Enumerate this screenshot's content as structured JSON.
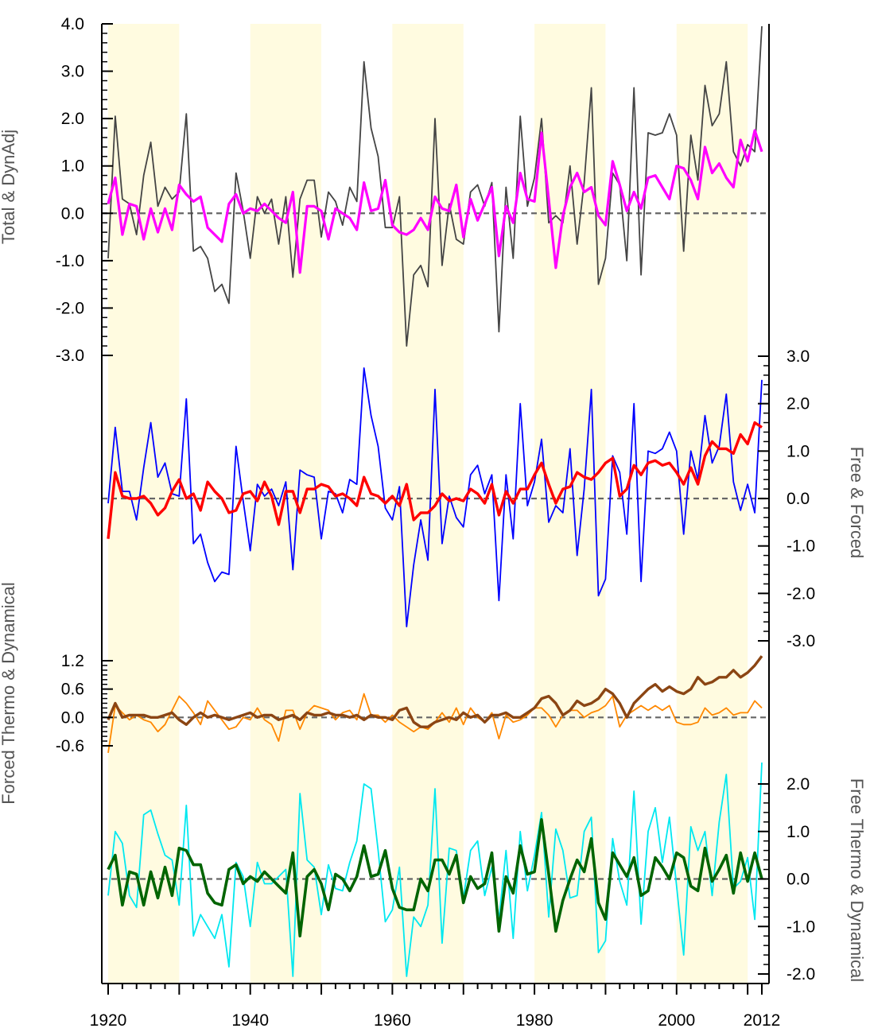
{
  "chart_data": {
    "type": "line",
    "x_axis": {
      "ticks": [
        1920,
        1940,
        1960,
        1980,
        2000,
        2012
      ],
      "range": [
        1919,
        2013
      ]
    },
    "shaded_decades": [
      [
        1920,
        1930
      ],
      [
        1940,
        1950
      ],
      [
        1960,
        1970
      ],
      [
        1980,
        1990
      ],
      [
        2000,
        2010
      ]
    ],
    "colors": {
      "shade": "#fffbe0",
      "zero_line": "#666666",
      "axis": "#000000",
      "label": "#555555"
    },
    "panels": [
      {
        "ylabel": "Total & DynAdj",
        "axis_side": "left",
        "ylim": [
          -3.0,
          4.0
        ],
        "ticks": [
          "4.0",
          "3.0",
          "2.0",
          "1.0",
          "0.0",
          "-1.0",
          "-2.0",
          "-3.0"
        ],
        "series": [
          {
            "color": "#444444",
            "width": 1.8,
            "start": 1920,
            "values": [
              -0.95,
              2.05,
              0.3,
              0.2,
              -0.45,
              0.8,
              1.5,
              0.15,
              0.55,
              0.3,
              0.45,
              2.1,
              -0.8,
              -0.7,
              -0.95,
              -1.65,
              -1.5,
              -1.9,
              0.85,
              0.05,
              -0.95,
              0.35,
              0.0,
              0.3,
              -0.65,
              0.35,
              -1.35,
              0.3,
              0.7,
              0.7,
              -0.5,
              0.45,
              0.25,
              -0.25,
              0.55,
              0.25,
              3.2,
              1.8,
              1.2,
              -0.3,
              -0.3,
              0.35,
              -2.8,
              -1.3,
              -1.1,
              -1.55,
              2.0,
              -1.1,
              0.2,
              -0.55,
              -0.65,
              0.45,
              0.6,
              0.15,
              0.65,
              -2.5,
              0.55,
              -0.95,
              2.05,
              0.15,
              0.75,
              2.0,
              -0.2,
              -0.05,
              -0.2,
              1.0,
              -0.65,
              0.65,
              2.65,
              -1.5,
              -0.95,
              0.85,
              0.6,
              -1.0,
              2.65,
              -1.3,
              1.7,
              1.65,
              1.7,
              2.1,
              1.65,
              -0.8,
              1.65,
              0.7,
              2.7,
              1.85,
              2.1,
              3.2,
              1.3,
              1.0,
              1.45,
              1.3,
              3.95
            ]
          },
          {
            "color": "#ff00ff",
            "width": 3.2,
            "start": 1920,
            "values": [
              0.2,
              0.75,
              -0.45,
              0.2,
              0.15,
              -0.55,
              0.1,
              -0.4,
              0.1,
              -0.35,
              0.6,
              0.4,
              0.25,
              0.35,
              -0.3,
              -0.45,
              -0.6,
              0.2,
              0.4,
              0.0,
              0.1,
              0.05,
              0.2,
              0.05,
              -0.1,
              -0.2,
              0.45,
              -1.25,
              0.15,
              0.15,
              0.05,
              -0.55,
              0.1,
              0.0,
              -0.1,
              -0.35,
              0.65,
              0.05,
              0.1,
              0.7,
              -0.25,
              -0.4,
              -0.45,
              -0.35,
              -0.1,
              -0.35,
              0.35,
              0.1,
              0.05,
              0.6,
              -0.5,
              0.3,
              -0.15,
              0.2,
              0.55,
              -0.9,
              0.15,
              -0.2,
              0.85,
              0.3,
              0.25,
              1.7,
              0.3,
              -1.15,
              -0.05,
              0.55,
              0.85,
              0.45,
              0.55,
              -0.05,
              -0.25,
              1.1,
              0.6,
              0.05,
              0.45,
              0.1,
              0.75,
              0.8,
              0.55,
              0.3,
              1.0,
              0.95,
              0.7,
              0.3,
              1.4,
              0.85,
              1.05,
              0.75,
              0.55,
              1.55,
              1.1,
              1.75,
              1.3
            ]
          }
        ]
      },
      {
        "ylabel": "Free & Forced",
        "axis_side": "right",
        "ylim": [
          -3.0,
          3.0
        ],
        "ticks": [
          "3.0",
          "2.0",
          "1.0",
          "0.0",
          "-1.0",
          "-2.0",
          "-3.0"
        ],
        "series": [
          {
            "color": "#0000ff",
            "width": 1.8,
            "start": 1920,
            "values": [
              -0.1,
              1.5,
              0.15,
              0.15,
              -0.45,
              0.65,
              1.6,
              0.45,
              0.75,
              0.1,
              0.05,
              2.1,
              -0.95,
              -0.75,
              -1.35,
              -1.75,
              -1.55,
              -1.6,
              1.1,
              -0.05,
              -1.1,
              0.3,
              0.05,
              0.2,
              -0.15,
              0.35,
              -1.5,
              0.6,
              0.5,
              0.45,
              -0.85,
              0.15,
              0.1,
              -0.3,
              0.4,
              0.3,
              2.75,
              1.75,
              1.1,
              -0.2,
              -0.45,
              0.25,
              -2.7,
              -1.4,
              -0.45,
              -1.3,
              2.3,
              -0.95,
              0.05,
              -0.4,
              -0.6,
              0.5,
              0.7,
              0.1,
              0.5,
              -2.15,
              0.5,
              -0.85,
              2.0,
              -0.15,
              0.35,
              1.25,
              -0.5,
              -0.15,
              -0.3,
              1.05,
              -1.2,
              0.2,
              2.3,
              -2.05,
              -1.7,
              0.9,
              0.55,
              -0.75,
              2.0,
              -1.75,
              1.0,
              0.95,
              1.05,
              1.4,
              1.0,
              -0.75,
              1.0,
              0.4,
              1.75,
              0.75,
              1.1,
              2.2,
              0.35,
              -0.25,
              0.3,
              -0.3,
              2.5
            ]
          },
          {
            "color": "#ff0000",
            "width": 3.4,
            "start": 1920,
            "values": [
              -0.85,
              0.55,
              0.05,
              0.0,
              0.0,
              0.05,
              -0.1,
              -0.35,
              -0.2,
              0.15,
              0.4,
              0.0,
              0.1,
              -0.25,
              0.35,
              0.15,
              0.0,
              -0.3,
              -0.25,
              0.1,
              0.15,
              -0.05,
              0.35,
              0.05,
              -0.55,
              0.15,
              0.15,
              -0.3,
              0.2,
              0.2,
              0.3,
              0.25,
              0.05,
              0.1,
              0.0,
              -0.15,
              0.45,
              0.1,
              0.05,
              -0.1,
              0.05,
              -0.15,
              0.3,
              -0.45,
              -0.3,
              -0.3,
              -0.15,
              0.1,
              -0.05,
              0.0,
              -0.05,
              0.2,
              0.1,
              -0.1,
              0.3,
              -0.35,
              0.15,
              -0.1,
              0.2,
              0.2,
              0.5,
              0.75,
              0.3,
              -0.1,
              0.2,
              0.25,
              0.55,
              0.45,
              0.4,
              0.55,
              0.75,
              0.85,
              0.05,
              0.2,
              0.7,
              0.5,
              0.75,
              0.8,
              0.7,
              0.75,
              0.55,
              0.3,
              0.65,
              0.3,
              0.9,
              1.2,
              1.05,
              1.05,
              0.95,
              1.35,
              1.15,
              1.6,
              1.5
            ]
          }
        ]
      },
      {
        "ylabel": "Forced Thermo & Dynamical",
        "axis_side": "left",
        "ylim": [
          -0.6,
          1.2
        ],
        "ticks": [
          "1.2",
          "0.6",
          "0.0",
          "-0.6"
        ],
        "series": [
          {
            "color": "#ff8800",
            "width": 1.8,
            "start": 1920,
            "values": [
              -0.75,
              0.25,
              0.1,
              -0.05,
              0.05,
              -0.05,
              -0.1,
              -0.3,
              -0.15,
              0.15,
              0.45,
              0.3,
              0.1,
              -0.15,
              0.35,
              0.15,
              -0.05,
              -0.25,
              -0.2,
              0.0,
              -0.05,
              0.2,
              -0.05,
              -0.15,
              -0.5,
              0.15,
              0.15,
              -0.25,
              0.1,
              0.25,
              0.2,
              0.15,
              -0.05,
              0.1,
              0.15,
              -0.05,
              0.5,
              0.05,
              0.05,
              -0.1,
              0.05,
              -0.1,
              -0.2,
              -0.3,
              -0.2,
              -0.25,
              -0.1,
              0.1,
              -0.1,
              0.2,
              -0.15,
              0.2,
              0.0,
              -0.1,
              0.1,
              -0.45,
              0.05,
              -0.1,
              -0.05,
              0.05,
              0.2,
              0.2,
              0.05,
              -0.2,
              0.05,
              0.15,
              0.15,
              0.0,
              0.1,
              0.15,
              0.25,
              0.45,
              -0.2,
              0.05,
              0.15,
              0.25,
              0.15,
              0.25,
              0.15,
              0.25,
              -0.1,
              -0.15,
              -0.15,
              -0.1,
              0.2,
              0.05,
              0.1,
              0.2,
              0.05,
              0.1,
              0.1,
              0.35,
              0.2
            ]
          },
          {
            "color": "#8b4513",
            "width": 3.4,
            "start": 1920,
            "values": [
              -0.05,
              0.3,
              0.0,
              0.05,
              0.05,
              0.05,
              0.0,
              0.0,
              0.05,
              0.1,
              -0.05,
              -0.15,
              0.0,
              0.1,
              0.0,
              0.05,
              0.0,
              -0.05,
              0.0,
              0.05,
              0.1,
              0.0,
              0.05,
              0.05,
              -0.05,
              0.0,
              0.05,
              -0.05,
              0.1,
              0.05,
              0.05,
              0.1,
              0.05,
              0.05,
              0.0,
              0.05,
              -0.05,
              0.05,
              0.0,
              0.0,
              -0.05,
              0.15,
              0.2,
              -0.1,
              -0.2,
              -0.2,
              -0.1,
              -0.05,
              0.0,
              -0.05,
              0.1,
              0.0,
              0.05,
              -0.1,
              0.05,
              0.05,
              0.1,
              0.0,
              0.0,
              0.1,
              0.2,
              0.4,
              0.45,
              0.3,
              0.05,
              0.15,
              0.35,
              0.25,
              0.3,
              0.4,
              0.6,
              0.5,
              0.3,
              0.0,
              0.3,
              0.45,
              0.6,
              0.7,
              0.55,
              0.65,
              0.55,
              0.5,
              0.6,
              0.85,
              0.7,
              0.75,
              0.85,
              0.85,
              1.0,
              0.85,
              0.95,
              1.1,
              1.3
            ]
          }
        ]
      },
      {
        "ylabel": "Free Thermo & Dynamical",
        "axis_side": "right",
        "ylim": [
          -2.0,
          2.0
        ],
        "ticks": [
          "2.0",
          "1.0",
          "0.0",
          "-1.0",
          "-2.0"
        ],
        "series": [
          {
            "color": "#00e8f0",
            "width": 1.8,
            "start": 1920,
            "values": [
              -0.35,
              1.0,
              0.75,
              -0.35,
              -0.6,
              1.35,
              1.45,
              0.95,
              0.5,
              0.4,
              -0.55,
              1.55,
              -1.2,
              -0.75,
              -1.0,
              -1.25,
              -0.75,
              -1.85,
              0.35,
              0.05,
              -1.0,
              0.35,
              -0.1,
              -0.1,
              0.05,
              0.2,
              -2.05,
              1.8,
              0.4,
              0.25,
              -0.75,
              0.3,
              -0.2,
              -0.25,
              0.35,
              0.8,
              2.0,
              1.9,
              0.6,
              -0.9,
              -0.65,
              0.25,
              -2.05,
              -0.8,
              -1.0,
              -0.55,
              1.9,
              -1.35,
              0.65,
              0.6,
              -0.4,
              0.6,
              0.8,
              -0.35,
              0.25,
              -0.85,
              0.6,
              -1.25,
              1.0,
              -0.25,
              0.5,
              1.4,
              -0.8,
              1.05,
              0.6,
              -0.4,
              -0.35,
              1.0,
              1.3,
              -1.55,
              -1.3,
              0.85,
              -0.05,
              -0.55,
              1.85,
              -0.95,
              1.0,
              1.5,
              0.35,
              1.3,
              -0.15,
              -1.6,
              1.1,
              0.6,
              1.0,
              -0.35,
              1.2,
              2.2,
              -0.2,
              -0.05,
              0.45,
              -0.85,
              2.45
            ]
          },
          {
            "color": "#006400",
            "width": 3.6,
            "start": 1920,
            "values": [
              0.2,
              0.5,
              -0.55,
              0.15,
              0.1,
              -0.55,
              0.15,
              -0.4,
              0.25,
              -0.35,
              0.65,
              0.6,
              0.3,
              0.3,
              -0.3,
              -0.5,
              -0.55,
              0.2,
              0.3,
              -0.1,
              0.05,
              -0.05,
              0.15,
              0.0,
              -0.15,
              -0.3,
              0.55,
              -1.2,
              0.05,
              0.2,
              -0.1,
              -0.65,
              0.1,
              0.0,
              -0.25,
              0.05,
              0.7,
              0.05,
              0.1,
              0.6,
              -0.2,
              -0.6,
              -0.65,
              -0.65,
              0.0,
              -0.25,
              0.4,
              0.4,
              0.1,
              0.5,
              -0.5,
              0.05,
              -0.2,
              -0.1,
              0.55,
              -1.1,
              0.05,
              -0.3,
              0.7,
              0.1,
              0.15,
              1.25,
              0.1,
              -1.1,
              -0.45,
              0.0,
              0.4,
              0.15,
              0.85,
              -0.5,
              -0.85,
              0.55,
              0.3,
              0.05,
              0.45,
              -0.35,
              -0.25,
              0.45,
              0.25,
              0.0,
              0.55,
              0.45,
              -0.15,
              -0.25,
              0.65,
              -0.05,
              0.2,
              0.5,
              -0.3,
              0.55,
              -0.05,
              0.55,
              0.0
            ]
          }
        ]
      }
    ]
  }
}
